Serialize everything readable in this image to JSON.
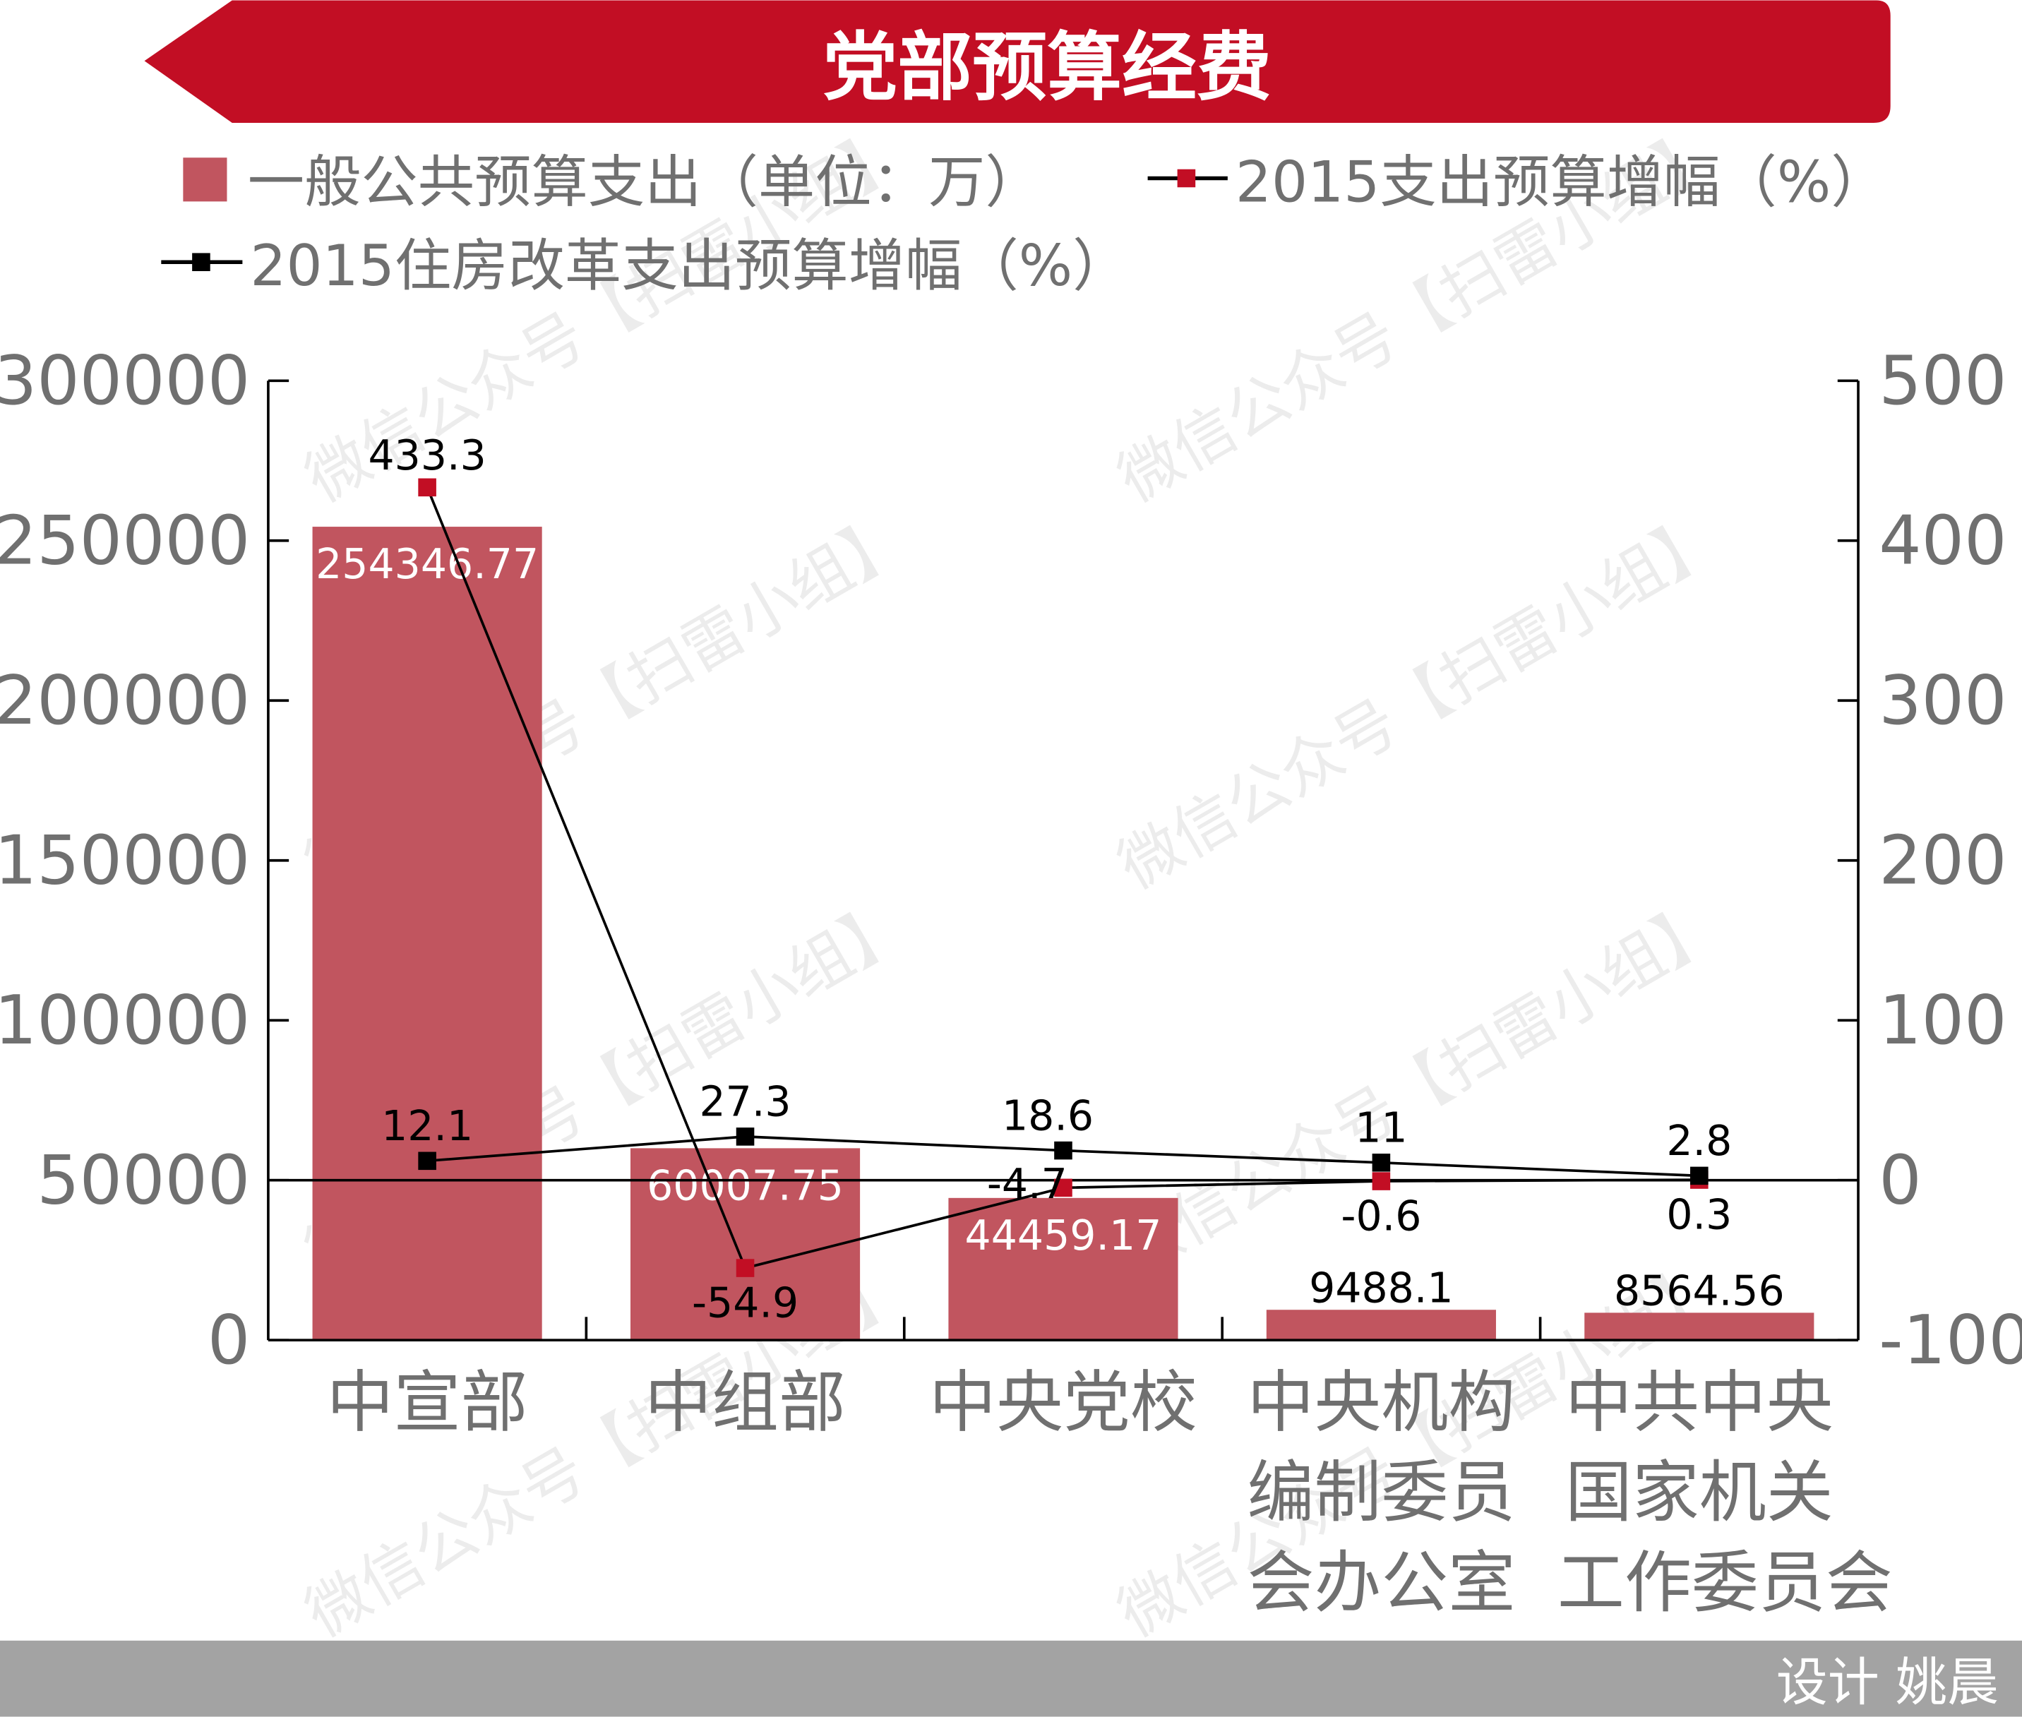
{
  "title": "党部预算经费",
  "footer": "设计 姚晨",
  "watermark": "微信公众号【扫雷小组】",
  "colors": {
    "banner": "#c20e24",
    "bar": "#c1555f",
    "red_series": "#c20e24",
    "black_series": "#000000",
    "footer_bg": "#a3a3a3",
    "axis_text": "#707070"
  },
  "chart_data": {
    "type": "bar+line",
    "categories": [
      [
        "中宣部"
      ],
      [
        "中组部"
      ],
      [
        "中央党校"
      ],
      [
        "中央机构",
        "编制委员",
        "会办公室"
      ],
      [
        "中共中央",
        "国家机关",
        "工作委员会"
      ]
    ],
    "left_axis": {
      "range": [
        0,
        300000
      ],
      "ticks": [
        "0",
        "50000",
        "100000",
        "150000",
        "200000",
        "250000",
        "300000"
      ]
    },
    "right_axis": {
      "range": [
        -100,
        500
      ],
      "ticks": [
        "-100",
        "0",
        "100",
        "200",
        "300",
        "400",
        "500"
      ]
    },
    "legend": [
      "一般公共预算支出（单位：万）",
      "2015支出预算增幅（%）",
      "2015住房改革支出预算增幅（%）"
    ],
    "legend_placement": "top",
    "grid": false,
    "series": [
      {
        "name": "一般公共预算支出（单位：万）",
        "type": "bar",
        "axis": "left",
        "values": [
          254346.77,
          60007.75,
          44459.17,
          9488.1,
          8564.56
        ],
        "labels": [
          "254346.77",
          "60007.75",
          "44459.17",
          "9488.1",
          "8564.56"
        ]
      },
      {
        "name": "2015支出预算增幅（%）",
        "type": "line",
        "axis": "right",
        "values": [
          433.3,
          -54.9,
          -4.7,
          -0.6,
          0.3
        ],
        "labels": [
          "433.3",
          "-54.9",
          "-4.7",
          "-0.6",
          "0.3"
        ]
      },
      {
        "name": "2015住房改革支出预算增幅（%）",
        "type": "line",
        "axis": "right",
        "values": [
          12.1,
          27.3,
          18.6,
          11,
          2.8
        ],
        "labels": [
          "12.1",
          "27.3",
          "18.6",
          "11",
          "2.8"
        ]
      }
    ]
  }
}
